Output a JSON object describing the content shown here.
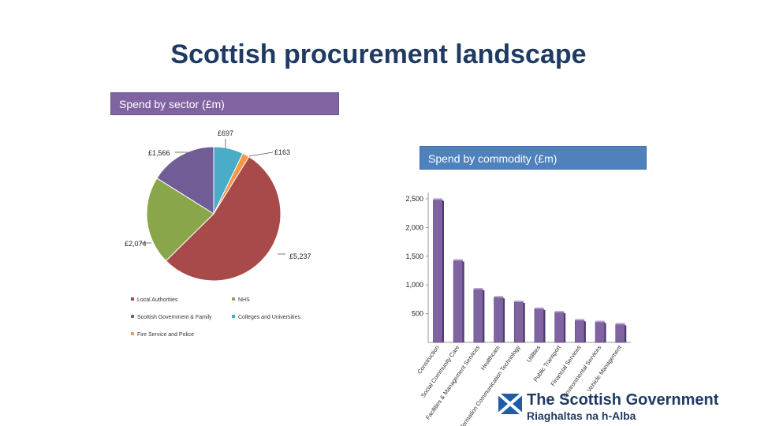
{
  "title": "Scottish procurement landscape",
  "sector_band": "Spend by sector  (£m)",
  "commodity_band": "Spend by commodity (£m)",
  "logo": {
    "name": "The Scottish Government",
    "subtitle": "Riaghaltas na h-Alba",
    "flag_icon": "saltire-flag-icon"
  },
  "chart_data": [
    {
      "type": "pie",
      "title": "Spend by sector  (£m)",
      "slices": [
        {
          "name": "Colleges and Universities",
          "value": 697,
          "label": "£697",
          "color": "#4aacc6"
        },
        {
          "name": "Fire Service and Police",
          "value": 163,
          "label": "£163",
          "color": "#f79646"
        },
        {
          "name": "Local Authorities",
          "value": 5237,
          "label": "£5,237",
          "color": "#a94a4a"
        },
        {
          "name": "NHS",
          "value": 2074,
          "label": "£2,074",
          "color": "#8aa64a"
        },
        {
          "name": "Scottish Government & Family",
          "value": 1566,
          "label": "£1,566",
          "color": "#715d96"
        }
      ],
      "legend": [
        {
          "name": "Local Authorities",
          "color": "#a94a4a"
        },
        {
          "name": "NHS",
          "color": "#8aa64a"
        },
        {
          "name": "Scottish Government & Family",
          "color": "#715d96"
        },
        {
          "name": "Colleges and Universities",
          "color": "#4aacc6"
        },
        {
          "name": "Fire Service and Police",
          "color": "#f79646"
        }
      ],
      "legend_position": "bottom"
    },
    {
      "type": "bar",
      "title": "Spend by commodity (£m)",
      "categories": [
        "Construction",
        "Social Community Care",
        "Facilities & Management Services",
        "Healthcare",
        "Information Communication Technology",
        "Utilities",
        "Public Transport",
        "Financial Services",
        "Environmental Services",
        "Vehicle Management"
      ],
      "values": [
        2480,
        1420,
        920,
        780,
        700,
        580,
        520,
        380,
        350,
        310
      ],
      "yticks": [
        "500",
        "1,000",
        "1,500",
        "2,000",
        "2,500"
      ],
      "ylim": [
        0,
        2700
      ],
      "color": "#8064a2"
    }
  ]
}
